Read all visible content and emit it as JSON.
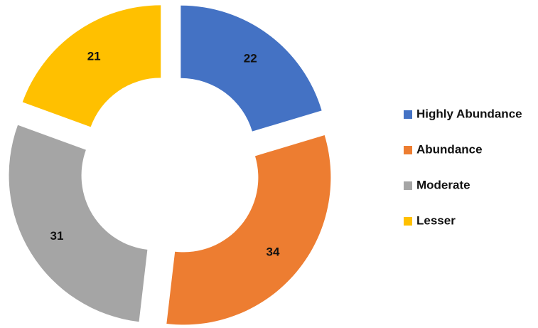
{
  "chart_data": {
    "type": "donut",
    "categories": [
      "Highly Abundance",
      "Abundance",
      "Moderate",
      "Lesser"
    ],
    "values": [
      22,
      34,
      31,
      21
    ],
    "colors": [
      "#4472c4",
      "#ed7d31",
      "#a5a5a5",
      "#ffc000"
    ],
    "legend": "right"
  }
}
